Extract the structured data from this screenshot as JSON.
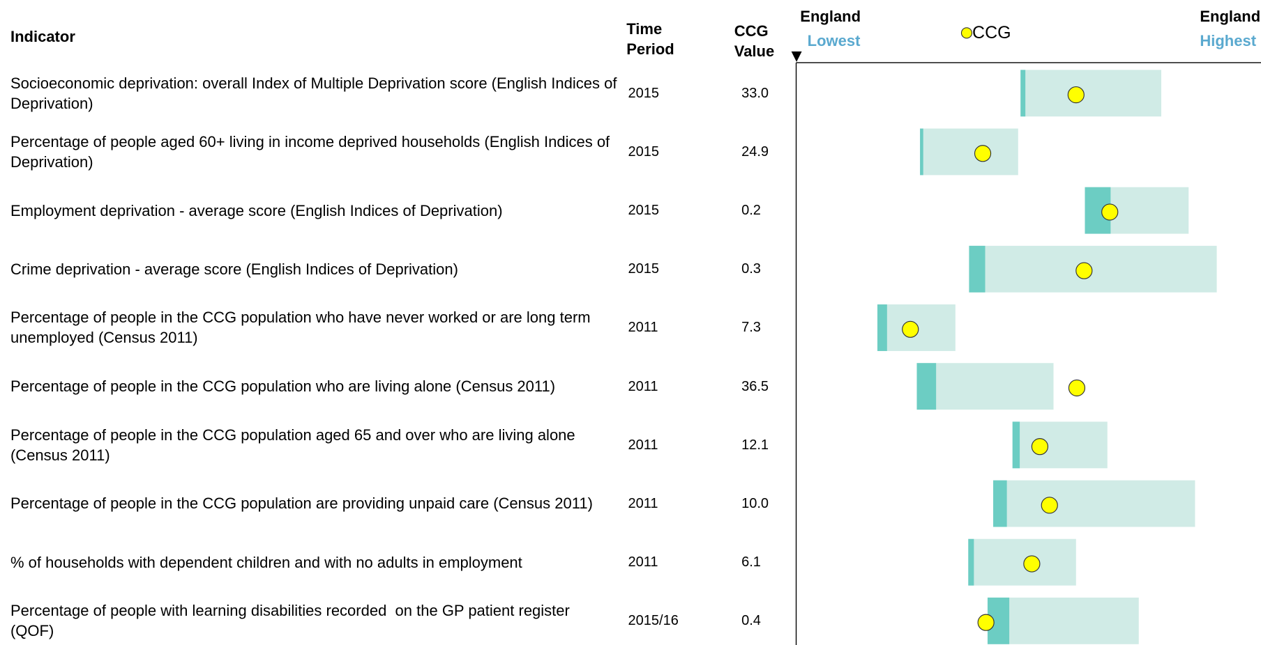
{
  "header": {
    "indicator": "Indicator",
    "time_period": "Time Period",
    "ccg_value": "CCG Value",
    "lowest": {
      "line1": "England",
      "line2": "Lowest"
    },
    "highest": {
      "line1": "England",
      "line2": "Highest"
    },
    "legend": "CCG"
  },
  "rows": [
    {
      "indicator": "Socioeconomic deprivation: overall Index of Multiple Deprivation score (English Indices of Deprivation)",
      "period": "2015",
      "value": "33.0"
    },
    {
      "indicator": "Percentage of people aged 60+ living in income deprived households (English Indices of Deprivation)",
      "period": "2015",
      "value": "24.9"
    },
    {
      "indicator": "Employment deprivation - average score (English Indices of Deprivation)",
      "period": "2015",
      "value": "0.2"
    },
    {
      "indicator": "Crime deprivation - average score (English Indices of Deprivation)",
      "period": "2015",
      "value": "0.3"
    },
    {
      "indicator": "Percentage of people in the CCG population who have never worked or are long term unemployed (Census 2011)",
      "period": "2011",
      "value": "7.3"
    },
    {
      "indicator": "Percentage of people in the CCG population who are living alone (Census 2011)",
      "period": "2011",
      "value": "36.5"
    },
    {
      "indicator": "Percentage of people in the CCG population aged 65 and over who are living alone (Census 2011)",
      "period": "2011",
      "value": "12.1"
    },
    {
      "indicator": "Percentage of people in the CCG population are providing unpaid care (Census 2011)",
      "period": "2011",
      "value": "10.0"
    },
    {
      "indicator": "% of households with dependent children and with no adults in employment",
      "period": "2011",
      "value": "6.1"
    },
    {
      "indicator": "Percentage of people with learning disabilities recorded  on the GP patient register (QOF)",
      "period": "2015/16",
      "value": "0.4"
    }
  ]
}
